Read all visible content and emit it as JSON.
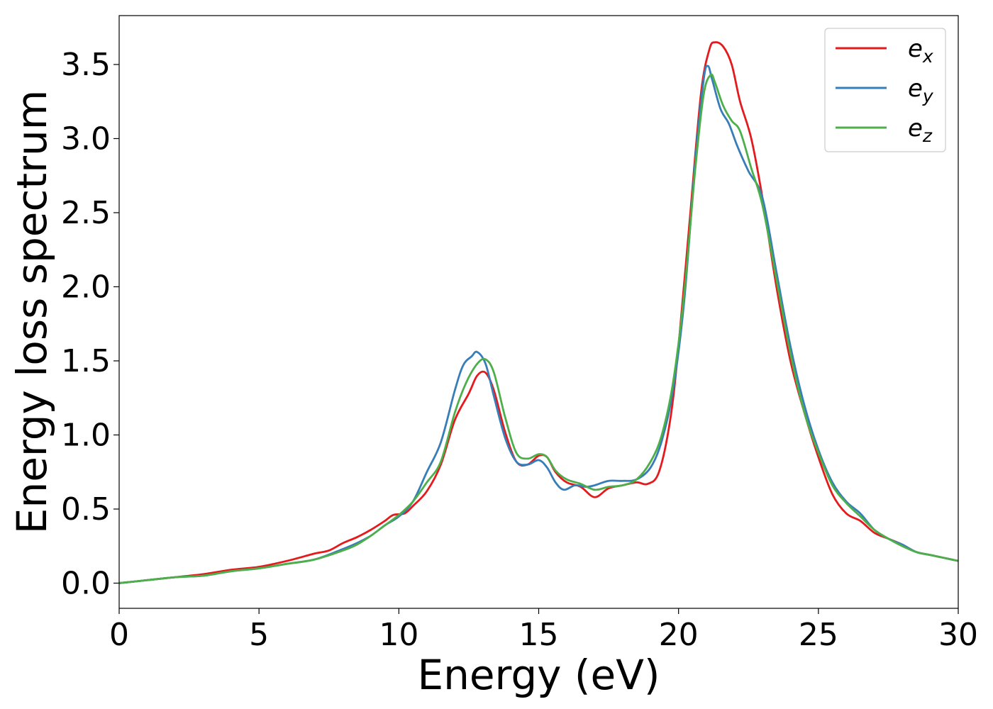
{
  "chart_data": {
    "type": "line",
    "title": "",
    "xlabel": "Energy (eV)",
    "ylabel": "Energy loss spectrum",
    "xlim": [
      0,
      30
    ],
    "ylim": [
      -0.17,
      3.83
    ],
    "xticks": [
      0,
      5,
      10,
      15,
      20,
      25,
      30
    ],
    "yticks": [
      0.0,
      0.5,
      1.0,
      1.5,
      2.0,
      2.5,
      3.0,
      3.5
    ],
    "xtick_labels": [
      "0",
      "5",
      "10",
      "15",
      "20",
      "25",
      "30"
    ],
    "ytick_labels": [
      "0.0",
      "0.5",
      "1.0",
      "1.5",
      "2.0",
      "2.5",
      "3.0",
      "3.5"
    ],
    "grid": false,
    "legend_position": "top-right",
    "series": [
      {
        "name": "e",
        "subscript": "x",
        "color": "#e41a1c",
        "x": [
          0,
          1,
          2,
          3,
          4,
          5,
          6,
          7,
          7.5,
          8,
          8.5,
          9,
          9.5,
          9.8,
          10.2,
          10.5,
          11,
          11.5,
          12,
          12.5,
          12.8,
          13.1,
          13.4,
          13.8,
          14.2,
          14.6,
          15.0,
          15.3,
          15.6,
          16.0,
          16.5,
          17.0,
          17.5,
          18.0,
          18.5,
          18.9,
          19.3,
          19.7,
          20.0,
          20.4,
          20.8,
          21.1,
          21.3,
          21.6,
          21.9,
          22.2,
          22.6,
          23.0,
          23.5,
          24.0,
          24.5,
          25.0,
          25.5,
          26.0,
          26.5,
          27.0,
          27.5,
          28.0,
          28.5,
          29.0,
          29.5,
          30.0
        ],
        "y": [
          0.0,
          0.02,
          0.04,
          0.06,
          0.09,
          0.11,
          0.15,
          0.2,
          0.22,
          0.27,
          0.31,
          0.36,
          0.42,
          0.46,
          0.47,
          0.52,
          0.62,
          0.8,
          1.1,
          1.28,
          1.4,
          1.42,
          1.3,
          1.02,
          0.82,
          0.8,
          0.86,
          0.85,
          0.75,
          0.68,
          0.65,
          0.58,
          0.64,
          0.66,
          0.68,
          0.67,
          0.75,
          1.1,
          1.6,
          2.45,
          3.3,
          3.6,
          3.65,
          3.62,
          3.5,
          3.25,
          3.0,
          2.6,
          2.0,
          1.5,
          1.15,
          0.85,
          0.6,
          0.47,
          0.42,
          0.34,
          0.3,
          0.26,
          0.21,
          0.19,
          0.17,
          0.15
        ]
      },
      {
        "name": "e",
        "subscript": "y",
        "color": "#377eb8",
        "x": [
          0,
          1,
          2,
          3,
          4,
          5,
          6,
          7,
          8,
          8.5,
          9,
          9.5,
          10,
          10.5,
          11,
          11.5,
          12,
          12.3,
          12.6,
          12.8,
          13.1,
          13.4,
          13.8,
          14.2,
          14.6,
          15.0,
          15.3,
          15.6,
          15.9,
          16.3,
          16.7,
          17.0,
          17.5,
          18.0,
          18.5,
          19.0,
          19.4,
          19.8,
          20.2,
          20.6,
          20.9,
          21.05,
          21.2,
          21.5,
          21.8,
          22.1,
          22.5,
          23.0,
          23.5,
          24.0,
          24.5,
          25.0,
          25.5,
          26.0,
          26.5,
          27.0,
          27.5,
          28.0,
          28.5,
          29.0,
          29.5,
          30.0
        ],
        "y": [
          0.0,
          0.02,
          0.04,
          0.05,
          0.08,
          0.1,
          0.13,
          0.16,
          0.23,
          0.27,
          0.32,
          0.39,
          0.45,
          0.55,
          0.75,
          0.95,
          1.3,
          1.47,
          1.53,
          1.56,
          1.48,
          1.26,
          0.98,
          0.82,
          0.8,
          0.83,
          0.78,
          0.68,
          0.63,
          0.66,
          0.65,
          0.66,
          0.69,
          0.69,
          0.7,
          0.78,
          0.96,
          1.3,
          1.9,
          2.85,
          3.4,
          3.49,
          3.4,
          3.2,
          3.1,
          2.95,
          2.78,
          2.6,
          2.1,
          1.6,
          1.2,
          0.9,
          0.68,
          0.55,
          0.47,
          0.36,
          0.3,
          0.26,
          0.21,
          0.19,
          0.17,
          0.15
        ]
      },
      {
        "name": "e",
        "subscript": "z",
        "color": "#4daf4a",
        "x": [
          0,
          1,
          2,
          3,
          4,
          5,
          6,
          7,
          8,
          8.5,
          9,
          9.5,
          10,
          10.5,
          11,
          11.5,
          12,
          12.4,
          12.8,
          13.1,
          13.4,
          13.8,
          14.2,
          14.6,
          15.0,
          15.3,
          15.6,
          16.0,
          16.5,
          17.0,
          17.5,
          18.0,
          18.5,
          19.0,
          19.4,
          19.8,
          20.2,
          20.6,
          20.9,
          21.15,
          21.3,
          21.6,
          21.9,
          22.2,
          22.6,
          23.0,
          23.5,
          24.0,
          24.5,
          25.0,
          25.5,
          26.0,
          26.5,
          27.0,
          27.5,
          28.0,
          28.5,
          29.0,
          29.5,
          30.0
        ],
        "y": [
          0.0,
          0.02,
          0.04,
          0.05,
          0.08,
          0.1,
          0.13,
          0.16,
          0.22,
          0.26,
          0.32,
          0.39,
          0.46,
          0.55,
          0.68,
          0.82,
          1.15,
          1.35,
          1.48,
          1.51,
          1.42,
          1.12,
          0.88,
          0.84,
          0.87,
          0.85,
          0.76,
          0.7,
          0.67,
          0.63,
          0.65,
          0.66,
          0.7,
          0.82,
          1.0,
          1.35,
          1.95,
          2.8,
          3.3,
          3.43,
          3.38,
          3.22,
          3.12,
          3.05,
          2.8,
          2.55,
          2.05,
          1.55,
          1.15,
          0.88,
          0.66,
          0.54,
          0.45,
          0.36,
          0.3,
          0.25,
          0.21,
          0.19,
          0.17,
          0.15
        ]
      }
    ]
  }
}
